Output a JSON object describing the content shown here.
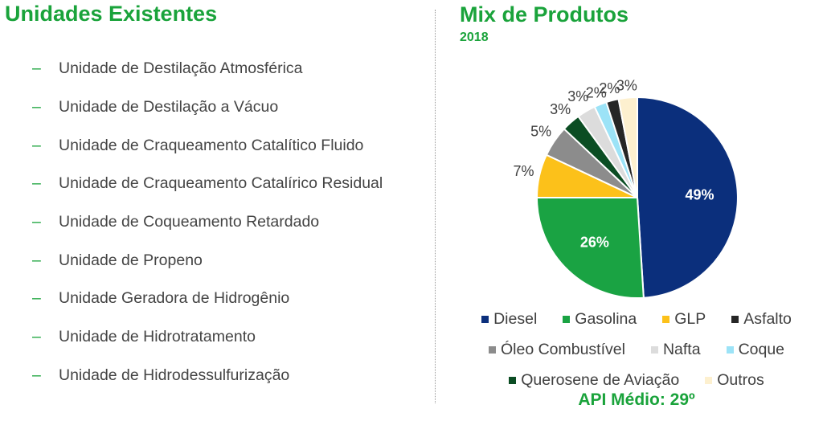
{
  "left": {
    "title": "Unidades Existentes",
    "bullet": "–",
    "units": [
      "Unidade de Destilação Atmosférica",
      "Unidade de Destilação a Vácuo",
      "Unidade de Craqueamento Catalítico Fluido",
      "Unidade de Craqueamento Catalírico Residual",
      "Unidade de Coqueamento Retardado",
      "Unidade de Propeno",
      "Unidade Geradora de Hidrogênio",
      "Unidade de Hidrotratamento",
      "Unidade de Hidrodessulfurização"
    ]
  },
  "right": {
    "title": "Mix de Produtos",
    "subtitle": "2018",
    "api_label": "API Médio: 29º"
  },
  "chart_data": {
    "type": "pie",
    "title": "Mix de Produtos",
    "subtitle": "2018",
    "legend_position": "bottom",
    "slices": [
      {
        "name": "Diesel",
        "value": 49,
        "label": "49%",
        "color": "#0b2f7c"
      },
      {
        "name": "Gasolina",
        "value": 26,
        "label": "26%",
        "color": "#1aa343"
      },
      {
        "name": "GLP",
        "value": 7,
        "label": "7%",
        "color": "#fcc11a"
      },
      {
        "name": "Óleo Combustível",
        "value": 5,
        "label": "5%",
        "color": "#8c8c8c"
      },
      {
        "name": "Querosene de Aviação",
        "value": 3,
        "label": "3%",
        "color": "#0b4d23"
      },
      {
        "name": "Nafta",
        "value": 3,
        "label": "3%",
        "color": "#dcdcdc"
      },
      {
        "name": "Coque",
        "value": 2,
        "label": "2%",
        "color": "#9ce3f7"
      },
      {
        "name": "Asfalto",
        "value": 2,
        "label": "2%",
        "color": "#262626"
      },
      {
        "name": "Outros",
        "value": 3,
        "label": "3%",
        "color": "#fdf0cf"
      }
    ],
    "legend_rows": [
      [
        "Diesel",
        "Gasolina",
        "GLP",
        "Asfalto"
      ],
      [
        "Óleo Combustível",
        "Nafta",
        "Coque"
      ],
      [
        "Querosene de Aviação",
        "Outros"
      ]
    ]
  }
}
